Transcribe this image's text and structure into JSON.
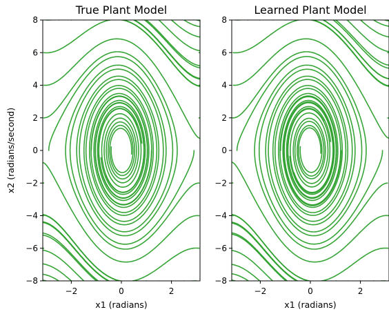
{
  "chart_data": [
    {
      "type": "line",
      "title": "True Plant Model",
      "xlabel": "x1 (radians)",
      "ylabel": "x2 (radians/second)",
      "xlim": [
        -3.14,
        3.14
      ],
      "ylim": [
        -8,
        8
      ],
      "xticks": [
        -2,
        0,
        2
      ],
      "yticks": [
        -8,
        -6,
        -4,
        -2,
        0,
        2,
        4,
        6,
        8
      ],
      "grid": false,
      "series_color": "#2ca02c",
      "description_of_marks": "pendulum phase-portrait trajectories spiraling to origin"
    },
    {
      "type": "line",
      "title": "Learned Plant Model",
      "xlabel": "x1 (radians)",
      "ylabel": "",
      "xlim": [
        -3.14,
        3.14
      ],
      "ylim": [
        -8,
        8
      ],
      "xticks": [
        -2,
        0,
        2
      ],
      "yticks": [
        -8,
        -6,
        -4,
        -2,
        0,
        2,
        4,
        6,
        8
      ],
      "grid": false,
      "series_color": "#2ca02c"
    }
  ]
}
